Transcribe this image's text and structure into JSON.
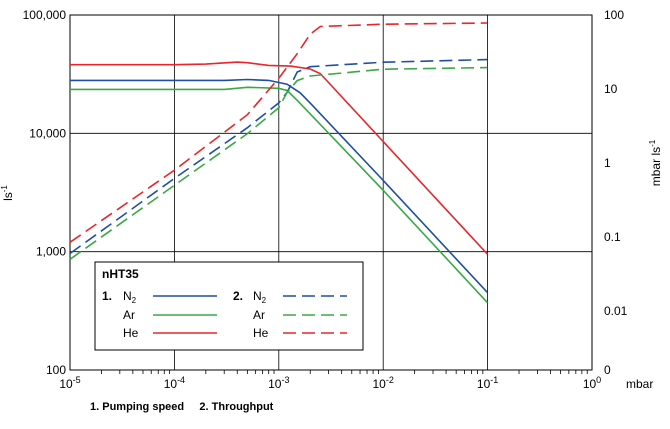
{
  "chart_data": {
    "type": "line",
    "x_scale": "log",
    "xlim": [
      1e-05,
      1
    ],
    "x_ticks": [
      {
        "value": 1e-05,
        "base": "10",
        "exp": "-5"
      },
      {
        "value": 0.0001,
        "base": "10",
        "exp": "-4"
      },
      {
        "value": 0.001,
        "base": "10",
        "exp": "-3"
      },
      {
        "value": 0.01,
        "base": "10",
        "exp": "-2"
      },
      {
        "value": 0.1,
        "base": "10",
        "exp": "-1"
      },
      {
        "value": 1,
        "base": "10",
        "exp": "0"
      }
    ],
    "xlabel": "mbar",
    "y_left": {
      "scale": "log",
      "lim": [
        100,
        100000
      ],
      "ticks": [
        {
          "value": 100,
          "label": "100"
        },
        {
          "value": 1000,
          "label": "1,000"
        },
        {
          "value": 10000,
          "label": "10,000"
        },
        {
          "value": 100000,
          "label": "100,000"
        }
      ],
      "label_base": "ls",
      "label_sup": "-1"
    },
    "y_right": {
      "scale": "log",
      "lim": [
        0.0016,
        100
      ],
      "ticks": [
        {
          "value": 100,
          "label": "100"
        },
        {
          "value": 10,
          "label": "10"
        },
        {
          "value": 1,
          "label": "1"
        },
        {
          "value": 0.1,
          "label": "0.1"
        },
        {
          "value": 0.01,
          "label": "0.01"
        },
        {
          "value": 0.0016,
          "label": "0"
        }
      ],
      "label_base": "mbar ls",
      "label_sup": "-1"
    },
    "grid": true,
    "colors": {
      "N2": "#1f4fa0",
      "Ar": "#3aa845",
      "He": "#e8262c"
    },
    "series": [
      {
        "group": "pumping_speed",
        "gas": "N2",
        "color": "#1f4fa0",
        "dash": false,
        "axis": "left",
        "points": [
          [
            1e-05,
            28000
          ],
          [
            0.0001,
            28000
          ],
          [
            0.0003,
            28000
          ],
          [
            0.0005,
            28500
          ],
          [
            0.0008,
            28000
          ],
          [
            0.0012,
            26000
          ],
          [
            0.0016,
            22000
          ],
          [
            0.002,
            18000
          ],
          [
            0.01,
            4000
          ],
          [
            0.1,
            450
          ]
        ]
      },
      {
        "group": "pumping_speed",
        "gas": "Ar",
        "color": "#3aa845",
        "dash": false,
        "axis": "left",
        "points": [
          [
            1e-05,
            23500
          ],
          [
            0.0001,
            23500
          ],
          [
            0.0003,
            23500
          ],
          [
            0.0005,
            24500
          ],
          [
            0.001,
            24000
          ],
          [
            0.0012,
            23000
          ],
          [
            0.0015,
            19000
          ],
          [
            0.01,
            3300
          ],
          [
            0.1,
            370
          ]
        ]
      },
      {
        "group": "pumping_speed",
        "gas": "He",
        "color": "#e8262c",
        "dash": false,
        "axis": "left",
        "points": [
          [
            1e-05,
            38000
          ],
          [
            0.0001,
            38000
          ],
          [
            0.0002,
            38500
          ],
          [
            0.0004,
            40000
          ],
          [
            0.0005,
            39500
          ],
          [
            0.0008,
            37500
          ],
          [
            0.0013,
            37000
          ],
          [
            0.002,
            35000
          ],
          [
            0.0025,
            32000
          ],
          [
            0.1,
            950
          ]
        ]
      },
      {
        "group": "throughput",
        "gas": "N2",
        "color": "#1f4fa0",
        "dash": true,
        "axis": "right",
        "points": [
          [
            1e-05,
            0.06
          ],
          [
            0.0001,
            0.62
          ],
          [
            0.0005,
            3.0
          ],
          [
            0.001,
            6.5
          ],
          [
            0.0012,
            9.0
          ],
          [
            0.0015,
            17.0
          ],
          [
            0.002,
            20.0
          ],
          [
            0.01,
            23.0
          ],
          [
            0.1,
            25.0
          ]
        ]
      },
      {
        "group": "throughput",
        "gas": "Ar",
        "color": "#3aa845",
        "dash": true,
        "axis": "right",
        "points": [
          [
            1e-05,
            0.05
          ],
          [
            0.0001,
            0.5
          ],
          [
            0.0005,
            2.5
          ],
          [
            0.001,
            5.6
          ],
          [
            0.0012,
            9.0
          ],
          [
            0.0015,
            13.0
          ],
          [
            0.002,
            15.0
          ],
          [
            0.01,
            18.5
          ],
          [
            0.1,
            19.5
          ]
        ]
      },
      {
        "group": "throughput",
        "gas": "He",
        "color": "#e8262c",
        "dash": true,
        "axis": "right",
        "points": [
          [
            1e-05,
            0.085
          ],
          [
            0.0001,
            0.8
          ],
          [
            0.0005,
            4.5
          ],
          [
            0.001,
            14.0
          ],
          [
            0.0015,
            30.0
          ],
          [
            0.002,
            55.0
          ],
          [
            0.0025,
            70.0
          ],
          [
            0.01,
            75.0
          ],
          [
            0.1,
            78.0
          ]
        ]
      }
    ],
    "legend": {
      "title": "nHT35",
      "placement": "bottom-left",
      "group1_label": "1.",
      "group2_label": "2.",
      "gases": [
        {
          "key": "N2",
          "base": "N",
          "sub": "2"
        },
        {
          "key": "Ar",
          "base": "Ar",
          "sub": ""
        },
        {
          "key": "He",
          "base": "He",
          "sub": ""
        }
      ]
    },
    "caption": "1. Pumping speed     2. Throughput"
  }
}
